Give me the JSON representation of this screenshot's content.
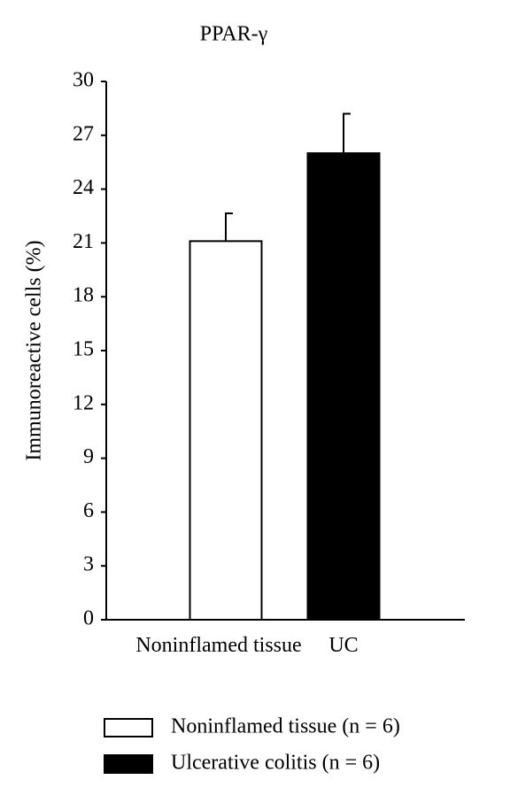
{
  "chart_data": {
    "type": "bar",
    "title": "PPAR-γ",
    "y_label": "Immunoreactive cells (%)",
    "categories": [
      "Noninflamed tissue",
      "UC"
    ],
    "values": [
      21.1,
      26.0
    ],
    "errors": [
      1.55,
      2.2
    ],
    "colors": [
      "#ffffff",
      "#000000"
    ],
    "ylim": [
      0,
      30
    ],
    "yticks": [
      0,
      3,
      6,
      9,
      12,
      15,
      18,
      21,
      24,
      27,
      30
    ],
    "legend": [
      "Noninflamed tissue (n = 6)",
      "Ulcerative colitis (n = 6)"
    ]
  }
}
